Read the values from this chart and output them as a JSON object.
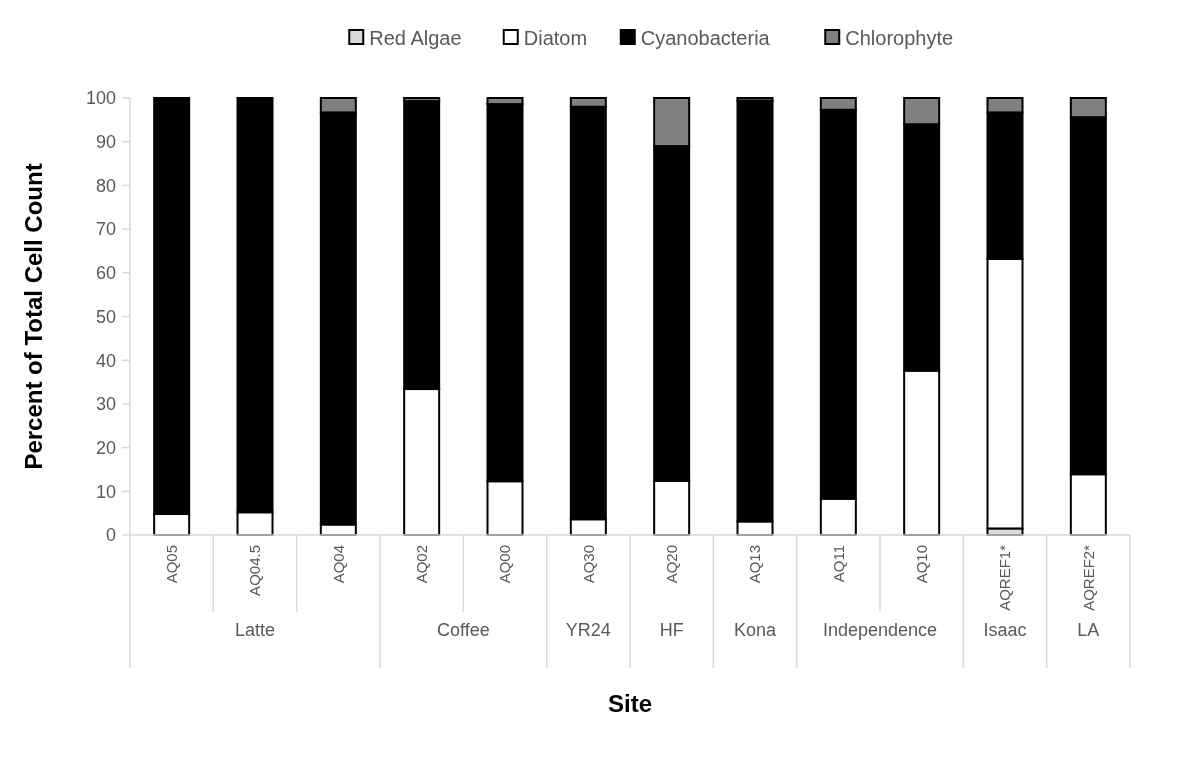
{
  "chart_data": {
    "type": "bar",
    "stacked": true,
    "xlabel": "Site",
    "ylabel": "Percent of Total Cell Count",
    "categories": [
      "AQ05",
      "AQ04.5",
      "AQ04",
      "AQ02",
      "AQ00",
      "AQ30",
      "AQ20",
      "AQ13",
      "AQ11",
      "AQ10",
      "AQREF1*",
      "AQREF2*"
    ],
    "series": [
      {
        "name": "Red Algae",
        "color": "#d9d9d9",
        "values": [
          0,
          0,
          0,
          0,
          0,
          0,
          0,
          0,
          0,
          0,
          1.5,
          0
        ]
      },
      {
        "name": "Diatom",
        "color": "#ffffff",
        "values": [
          4.8,
          5.2,
          2.4,
          33.4,
          12.3,
          3.6,
          12.4,
          3.1,
          8.3,
          37.6,
          61.7,
          13.9
        ]
      },
      {
        "name": "Cyanobacteria",
        "color": "#000000",
        "values": [
          95.2,
          94.8,
          94.3,
          65.9,
          86.3,
          94.4,
          76.6,
          96.3,
          89,
          56.4,
          33.5,
          81.7
        ]
      },
      {
        "name": "Chlorophyte",
        "color": "#808080",
        "values": [
          0,
          0,
          3.3,
          0.7,
          1.4,
          2,
          11,
          0.6,
          2.7,
          6,
          3.3,
          4.4
        ]
      }
    ],
    "ylim": [
      0,
      100
    ],
    "yticks": [
      0,
      10,
      20,
      30,
      40,
      50,
      60,
      70,
      80,
      90,
      100
    ],
    "grid": false,
    "legend": "top",
    "annotations": [
      "Latte",
      "Coffee",
      "YR24",
      "HF",
      "Kona",
      "Independence",
      "Isaac",
      "LA"
    ]
  }
}
